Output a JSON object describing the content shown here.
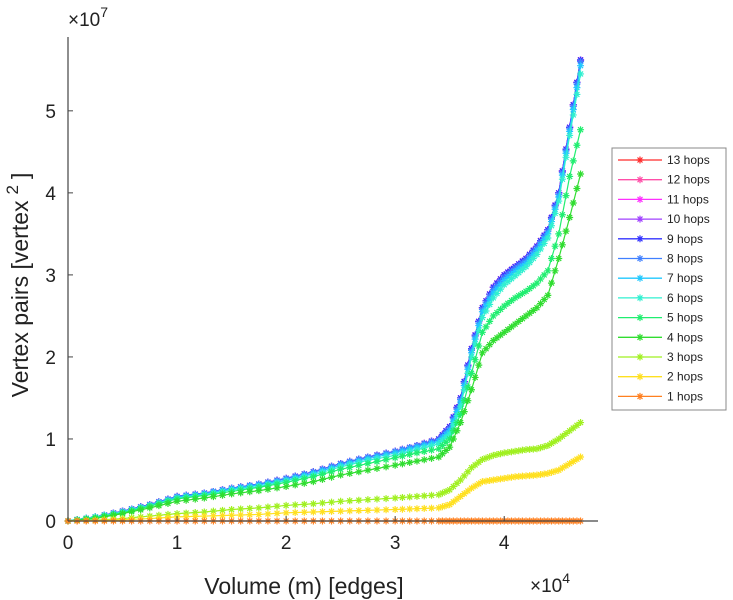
{
  "chart_data": {
    "type": "line",
    "title": "",
    "xlabel": "Volume (m) [edges]",
    "ylabel": "Vertex pairs [vertex",
    "ylabel_superscript": "2",
    "ylabel_close": "]",
    "x_multiplier": "×10",
    "x_multiplier_exp": "4",
    "y_multiplier": "×10",
    "y_multiplier_exp": "7",
    "xlim": [
      0,
      4.86
    ],
    "ylim": [
      0,
      5.9
    ],
    "xticks": [
      "0",
      "1",
      "2",
      "3",
      "4"
    ],
    "yticks": [
      "0",
      "1",
      "2",
      "3",
      "4",
      "5"
    ],
    "grid": false,
    "legend_position": "outside-right",
    "x": [
      0,
      0.25,
      0.5,
      0.75,
      1,
      1.25,
      1.5,
      1.75,
      2,
      2.25,
      2.5,
      2.75,
      3,
      3.2,
      3.4,
      3.5,
      3.6,
      3.7,
      3.8,
      3.9,
      4.0,
      4.1,
      4.2,
      4.3,
      4.4,
      4.5,
      4.6,
      4.7
    ],
    "series": [
      {
        "name": "13 hops",
        "color": "#ff2a2a",
        "values": [
          0,
          0.05,
          0.12,
          0.2,
          0.3,
          0.34,
          0.4,
          0.45,
          0.52,
          0.6,
          0.7,
          0.78,
          0.85,
          0.92,
          1.0,
          1.15,
          1.5,
          2.1,
          2.6,
          2.85,
          3.0,
          3.1,
          3.2,
          3.35,
          3.55,
          4.0,
          4.8,
          5.62
        ]
      },
      {
        "name": "12 hops",
        "color": "#ff4fa8",
        "values": [
          0,
          0.05,
          0.12,
          0.2,
          0.3,
          0.34,
          0.4,
          0.45,
          0.52,
          0.6,
          0.7,
          0.78,
          0.85,
          0.92,
          1.0,
          1.15,
          1.5,
          2.1,
          2.6,
          2.85,
          3.0,
          3.1,
          3.2,
          3.35,
          3.55,
          4.0,
          4.8,
          5.62
        ]
      },
      {
        "name": "11 hops",
        "color": "#ff30ff",
        "values": [
          0,
          0.05,
          0.12,
          0.2,
          0.3,
          0.34,
          0.4,
          0.45,
          0.52,
          0.6,
          0.7,
          0.78,
          0.85,
          0.92,
          1.0,
          1.15,
          1.5,
          2.1,
          2.6,
          2.85,
          3.0,
          3.1,
          3.2,
          3.35,
          3.55,
          4.0,
          4.8,
          5.62
        ]
      },
      {
        "name": "10 hops",
        "color": "#a040ff",
        "values": [
          0,
          0.05,
          0.12,
          0.2,
          0.3,
          0.34,
          0.4,
          0.45,
          0.52,
          0.6,
          0.7,
          0.78,
          0.85,
          0.92,
          1.0,
          1.15,
          1.5,
          2.1,
          2.6,
          2.85,
          3.0,
          3.1,
          3.2,
          3.35,
          3.55,
          4.0,
          4.8,
          5.62
        ]
      },
      {
        "name": "9 hops",
        "color": "#3333ff",
        "values": [
          0,
          0.05,
          0.12,
          0.2,
          0.3,
          0.34,
          0.4,
          0.45,
          0.52,
          0.6,
          0.7,
          0.78,
          0.85,
          0.92,
          1.0,
          1.15,
          1.5,
          2.1,
          2.6,
          2.85,
          3.0,
          3.1,
          3.2,
          3.35,
          3.55,
          4.0,
          4.8,
          5.62
        ]
      },
      {
        "name": "8 hops",
        "color": "#4080ff",
        "values": [
          0,
          0.05,
          0.12,
          0.2,
          0.3,
          0.34,
          0.4,
          0.45,
          0.52,
          0.6,
          0.7,
          0.78,
          0.85,
          0.92,
          0.99,
          1.13,
          1.48,
          2.08,
          2.58,
          2.82,
          2.97,
          3.08,
          3.18,
          3.33,
          3.53,
          3.98,
          4.78,
          5.6
        ]
      },
      {
        "name": "7 hops",
        "color": "#20c8ff",
        "values": [
          0,
          0.05,
          0.11,
          0.19,
          0.29,
          0.33,
          0.39,
          0.44,
          0.5,
          0.58,
          0.68,
          0.76,
          0.83,
          0.9,
          0.97,
          1.1,
          1.45,
          2.05,
          2.55,
          2.78,
          2.93,
          3.04,
          3.14,
          3.3,
          3.5,
          3.95,
          4.75,
          5.55
        ]
      },
      {
        "name": "6 hops",
        "color": "#30f0d0",
        "values": [
          0,
          0.05,
          0.11,
          0.19,
          0.28,
          0.32,
          0.38,
          0.42,
          0.49,
          0.56,
          0.66,
          0.74,
          0.8,
          0.87,
          0.94,
          1.06,
          1.4,
          2.0,
          2.48,
          2.72,
          2.88,
          2.99,
          3.1,
          3.25,
          3.45,
          3.9,
          4.7,
          5.45
        ]
      },
      {
        "name": "5 hops",
        "color": "#20ee70",
        "values": [
          0,
          0.04,
          0.1,
          0.18,
          0.27,
          0.31,
          0.36,
          0.41,
          0.47,
          0.54,
          0.63,
          0.7,
          0.77,
          0.83,
          0.88,
          1.0,
          1.3,
          1.8,
          2.3,
          2.5,
          2.62,
          2.72,
          2.8,
          2.9,
          3.05,
          3.5,
          4.2,
          4.77
        ]
      },
      {
        "name": "4 hops",
        "color": "#30dd30",
        "values": [
          0,
          0.03,
          0.09,
          0.16,
          0.24,
          0.28,
          0.33,
          0.37,
          0.42,
          0.48,
          0.56,
          0.62,
          0.68,
          0.73,
          0.78,
          0.9,
          1.2,
          1.6,
          2.05,
          2.2,
          2.3,
          2.4,
          2.5,
          2.6,
          2.75,
          3.2,
          3.7,
          4.23
        ]
      },
      {
        "name": "3 hops",
        "color": "#a0f020",
        "values": [
          0,
          0.01,
          0.03,
          0.06,
          0.09,
          0.11,
          0.14,
          0.16,
          0.19,
          0.21,
          0.24,
          0.26,
          0.28,
          0.3,
          0.32,
          0.38,
          0.5,
          0.65,
          0.75,
          0.8,
          0.83,
          0.85,
          0.87,
          0.88,
          0.92,
          1.0,
          1.1,
          1.2
        ]
      },
      {
        "name": "2 hops",
        "color": "#ffe020",
        "values": [
          0,
          0.005,
          0.015,
          0.03,
          0.05,
          0.06,
          0.07,
          0.08,
          0.1,
          0.11,
          0.12,
          0.13,
          0.14,
          0.15,
          0.16,
          0.2,
          0.3,
          0.4,
          0.48,
          0.5,
          0.52,
          0.54,
          0.55,
          0.56,
          0.58,
          0.62,
          0.7,
          0.78
        ]
      },
      {
        "name": "1 hops",
        "color": "#ff8020",
        "values": [
          0,
          0,
          0,
          0,
          0,
          0,
          0,
          0,
          0,
          0,
          0,
          0,
          0,
          0,
          0,
          0,
          0,
          0,
          0,
          0,
          0,
          0,
          0,
          0,
          0,
          0,
          0,
          0
        ]
      }
    ]
  }
}
